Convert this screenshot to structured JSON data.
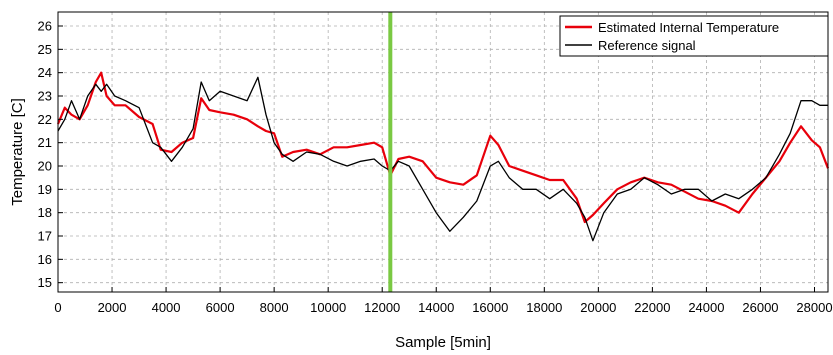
{
  "chart_data": {
    "type": "line",
    "title": "",
    "xlabel": "Sample [5min]",
    "ylabel": "Temperature [C]",
    "xlim": [
      0,
      28500
    ],
    "ylim": [
      14.6,
      26.6
    ],
    "x_ticks": [
      0,
      2000,
      4000,
      6000,
      8000,
      10000,
      12000,
      14000,
      16000,
      18000,
      20000,
      22000,
      24000,
      26000,
      28000
    ],
    "x_tick_labels": [
      "0",
      "2000",
      "4000",
      "6000",
      "8000",
      "10000",
      "12000",
      "14000",
      "16000",
      "18000",
      "20000",
      "22000",
      "24000",
      "26000",
      "28000"
    ],
    "y_ticks": [
      15,
      16,
      17,
      18,
      19,
      20,
      21,
      22,
      23,
      24,
      25,
      26
    ],
    "y_tick_labels": [
      "15",
      "16",
      "17",
      "18",
      "19",
      "20",
      "21",
      "22",
      "23",
      "24",
      "25",
      "26"
    ],
    "grid": true,
    "legend_position": "top-right",
    "vertical_marker": {
      "x": 12300,
      "color": "#7ac943"
    },
    "series": [
      {
        "name": "Estimated Internal Temperature",
        "color": "#e8000b",
        "x": [
          0,
          250,
          500,
          800,
          1100,
          1400,
          1600,
          1800,
          2100,
          2500,
          3000,
          3500,
          3800,
          4200,
          4600,
          5000,
          5300,
          5600,
          6000,
          6500,
          7000,
          7400,
          7700,
          8000,
          8300,
          8700,
          9200,
          9700,
          10200,
          10700,
          11200,
          11700,
          12000,
          12300,
          12600,
          13000,
          13500,
          14000,
          14500,
          15000,
          15500,
          16000,
          16300,
          16700,
          17200,
          17700,
          18200,
          18700,
          19200,
          19500,
          19800,
          20200,
          20700,
          21200,
          21700,
          22200,
          22700,
          23200,
          23700,
          24200,
          24700,
          25200,
          25700,
          26200,
          26700,
          27100,
          27500,
          27900,
          28200,
          28500
        ],
        "values": [
          21.8,
          22.5,
          22.2,
          22.0,
          22.6,
          23.6,
          24.0,
          23.0,
          22.6,
          22.6,
          22.1,
          21.8,
          20.7,
          20.6,
          21.0,
          21.2,
          22.9,
          22.4,
          22.3,
          22.2,
          22.0,
          21.7,
          21.5,
          21.4,
          20.4,
          20.6,
          20.7,
          20.5,
          20.8,
          20.8,
          20.9,
          21.0,
          20.8,
          19.6,
          20.3,
          20.4,
          20.2,
          19.5,
          19.3,
          19.2,
          19.6,
          21.3,
          20.9,
          20.0,
          19.8,
          19.6,
          19.4,
          19.4,
          18.6,
          17.6,
          17.9,
          18.4,
          19.0,
          19.3,
          19.5,
          19.3,
          19.2,
          18.9,
          18.6,
          18.5,
          18.3,
          18.0,
          18.8,
          19.5,
          20.2,
          21.0,
          21.7,
          21.1,
          20.8,
          19.9
        ]
      },
      {
        "name": "Reference signal",
        "color": "#000000",
        "x": [
          0,
          250,
          500,
          800,
          1100,
          1400,
          1600,
          1800,
          2100,
          2500,
          3000,
          3500,
          3800,
          4200,
          4600,
          5000,
          5300,
          5600,
          6000,
          6500,
          7000,
          7400,
          7700,
          8000,
          8300,
          8700,
          9200,
          9700,
          10200,
          10700,
          11200,
          11700,
          12000,
          12300,
          12600,
          13000,
          13500,
          14000,
          14500,
          15000,
          15500,
          16000,
          16300,
          16700,
          17200,
          17700,
          18200,
          18700,
          19200,
          19500,
          19800,
          20200,
          20700,
          21200,
          21700,
          22200,
          22700,
          23200,
          23700,
          24200,
          24700,
          25200,
          25700,
          26200,
          26700,
          27100,
          27500,
          27900,
          28200,
          28500
        ],
        "values": [
          21.5,
          22.0,
          22.8,
          22.0,
          23.0,
          23.5,
          23.2,
          23.5,
          23.0,
          22.8,
          22.5,
          21.0,
          20.8,
          20.2,
          20.8,
          21.6,
          23.6,
          22.8,
          23.2,
          23.0,
          22.8,
          23.8,
          22.2,
          21.0,
          20.5,
          20.2,
          20.6,
          20.5,
          20.2,
          20.0,
          20.2,
          20.3,
          20.0,
          19.8,
          20.2,
          20.0,
          19.0,
          18.0,
          17.2,
          17.8,
          18.5,
          20.0,
          20.2,
          19.5,
          19.0,
          19.0,
          18.6,
          19.0,
          18.4,
          17.8,
          16.8,
          18.0,
          18.8,
          19.0,
          19.5,
          19.2,
          18.8,
          19.0,
          19.0,
          18.5,
          18.8,
          18.6,
          19.0,
          19.5,
          20.5,
          21.4,
          22.8,
          22.8,
          22.6,
          22.6
        ]
      }
    ]
  }
}
